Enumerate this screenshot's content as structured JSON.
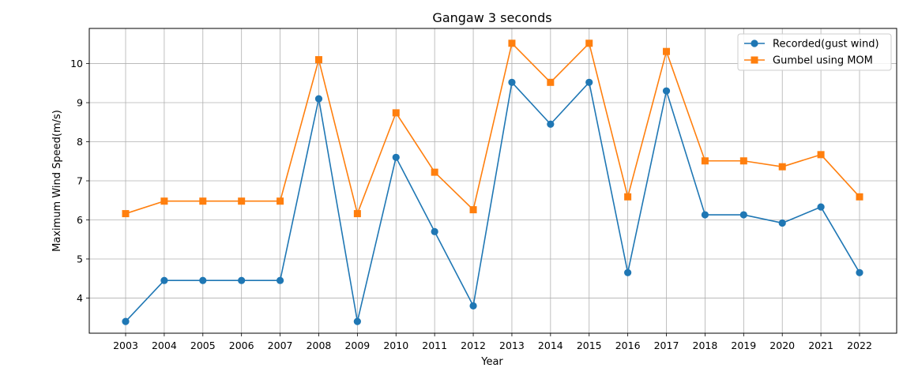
{
  "chart_data": {
    "type": "line",
    "title": "Gangaw 3 seconds",
    "xlabel": "Year",
    "ylabel": "Maximum Wind Speed(m/s)",
    "categories": [
      "2003",
      "2004",
      "2005",
      "2006",
      "2007",
      "2008",
      "2009",
      "2010",
      "2011",
      "2012",
      "2013",
      "2014",
      "2015",
      "2016",
      "2017",
      "2018",
      "2019",
      "2020",
      "2021",
      "2022"
    ],
    "yticks": [
      4,
      5,
      6,
      7,
      8,
      9,
      10
    ],
    "ylim": [
      3.1,
      10.9
    ],
    "grid": true,
    "legend_position": "top-right",
    "series": [
      {
        "name": "Recorded(gust wind)",
        "color": "#1f77b4",
        "marker": "circle",
        "values": [
          3.4,
          4.45,
          4.45,
          4.45,
          4.45,
          9.1,
          3.4,
          7.6,
          5.7,
          3.8,
          9.52,
          8.45,
          9.52,
          4.65,
          9.3,
          6.13,
          6.13,
          5.92,
          6.33,
          4.65
        ]
      },
      {
        "name": "Gumbel using MOM",
        "color": "#ff7f0e",
        "marker": "square",
        "values": [
          6.16,
          6.48,
          6.48,
          6.48,
          6.48,
          10.1,
          6.16,
          8.74,
          7.22,
          6.26,
          10.52,
          9.52,
          10.52,
          6.59,
          10.31,
          7.51,
          7.51,
          7.36,
          7.67,
          6.59
        ]
      }
    ]
  }
}
